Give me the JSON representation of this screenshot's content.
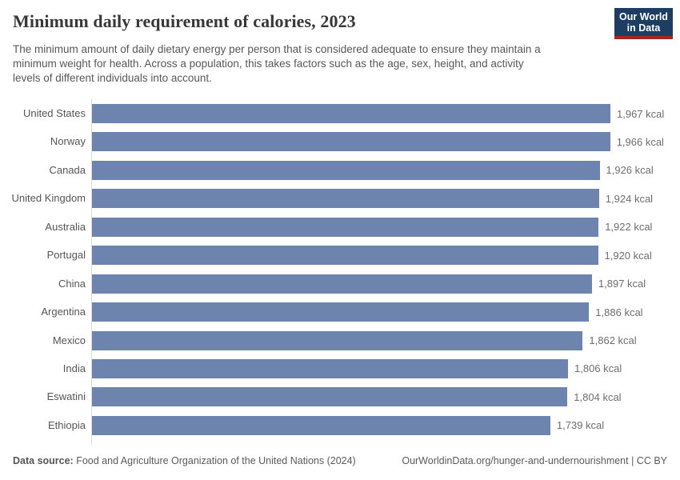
{
  "header": {
    "title": "Minimum daily requirement of calories, 2023",
    "subtitle_lines": [
      "The minimum amount of daily dietary energy per person that is considered adequate to ensure they maintain a",
      "minimum weight for health. Across a population, this takes factors such as the age, sex, height, and activity",
      "levels of different individuals into account."
    ],
    "logo": {
      "line1": "Our World",
      "line2": "in Data"
    }
  },
  "chart_data": {
    "type": "bar",
    "orientation": "horizontal",
    "title": "Minimum daily requirement of calories, 2023",
    "unit": "kcal",
    "categories": [
      "United States",
      "Norway",
      "Canada",
      "United Kingdom",
      "Australia",
      "Portugal",
      "China",
      "Argentina",
      "Mexico",
      "India",
      "Eswatini",
      "Ethiopia"
    ],
    "values": [
      1967,
      1966,
      1926,
      1924,
      1922,
      1920,
      1897,
      1886,
      1862,
      1806,
      1804,
      1739
    ],
    "value_labels": [
      "1,967 kcal",
      "1,966 kcal",
      "1,926 kcal",
      "1,924 kcal",
      "1,922 kcal",
      "1,920 kcal",
      "1,897 kcal",
      "1,886 kcal",
      "1,862 kcal",
      "1,806 kcal",
      "1,804 kcal",
      "1,739 kcal"
    ],
    "xlim": [
      0,
      1967
    ],
    "grid": false,
    "legend": "none",
    "bar_color": "#6d85ae"
  },
  "footer": {
    "source_label": "Data source:",
    "source_text": " Food and Agriculture Organization of the United Nations (2024)",
    "link_text": "OurWorldinData.org/hunger-and-undernourishment | CC BY"
  },
  "colors": {
    "bar": "#6d85ae",
    "logo_navy": "#1d3d63",
    "logo_red": "#a8231c",
    "axis": "#dcdcdc"
  }
}
